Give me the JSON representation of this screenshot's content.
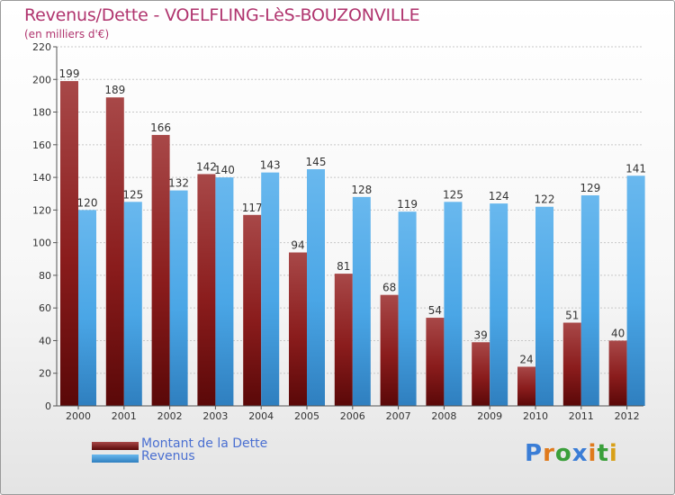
{
  "title": "Revenus/Dette - VOELFLING-LèS-BOUZONVILLE",
  "subtitle": "(en milliers d'€)",
  "logo": {
    "text": "Proxiti",
    "letters": [
      {
        "ch": "P",
        "color": "#3a7dd6"
      },
      {
        "ch": "r",
        "color": "#e07a1c"
      },
      {
        "ch": "o",
        "color": "#3a9f3a"
      },
      {
        "ch": "x",
        "color": "#3a7dd6"
      },
      {
        "ch": "i",
        "color": "#e07a1c"
      },
      {
        "ch": "t",
        "color": "#3a9f3a"
      },
      {
        "ch": "i",
        "color": "#d8a018"
      }
    ]
  },
  "colors": {
    "dette": "#8a1c1c",
    "dette_light": "#a84848",
    "dette_dark": "#5a0808",
    "revenus": "#4aa6e6",
    "revenus_light": "#69b8ee",
    "revenus_dark": "#2f7fbf",
    "axis": "#555555",
    "grid": "#c8c8c8",
    "text": "#333333"
  },
  "chart_data": {
    "type": "bar",
    "title": "Revenus/Dette - VOELFLING-LèS-BOUZONVILLE",
    "subtitle": "(en milliers d'€)",
    "xlabel": "",
    "ylabel": "",
    "ylim": [
      0,
      220
    ],
    "yticks": [
      0,
      20,
      40,
      60,
      80,
      100,
      120,
      140,
      160,
      180,
      200,
      220
    ],
    "grid": true,
    "legend_position": "bottom-left",
    "categories": [
      "2000",
      "2001",
      "2002",
      "2003",
      "2004",
      "2005",
      "2006",
      "2007",
      "2008",
      "2009",
      "2010",
      "2011",
      "2012"
    ],
    "series": [
      {
        "name": "Montant de la Dette",
        "values": [
          199,
          189,
          166,
          142,
          117,
          94,
          81,
          68,
          54,
          39,
          24,
          51,
          40
        ]
      },
      {
        "name": "Revenus",
        "values": [
          120,
          125,
          132,
          140,
          143,
          145,
          128,
          119,
          125,
          124,
          122,
          129,
          141
        ]
      }
    ]
  }
}
